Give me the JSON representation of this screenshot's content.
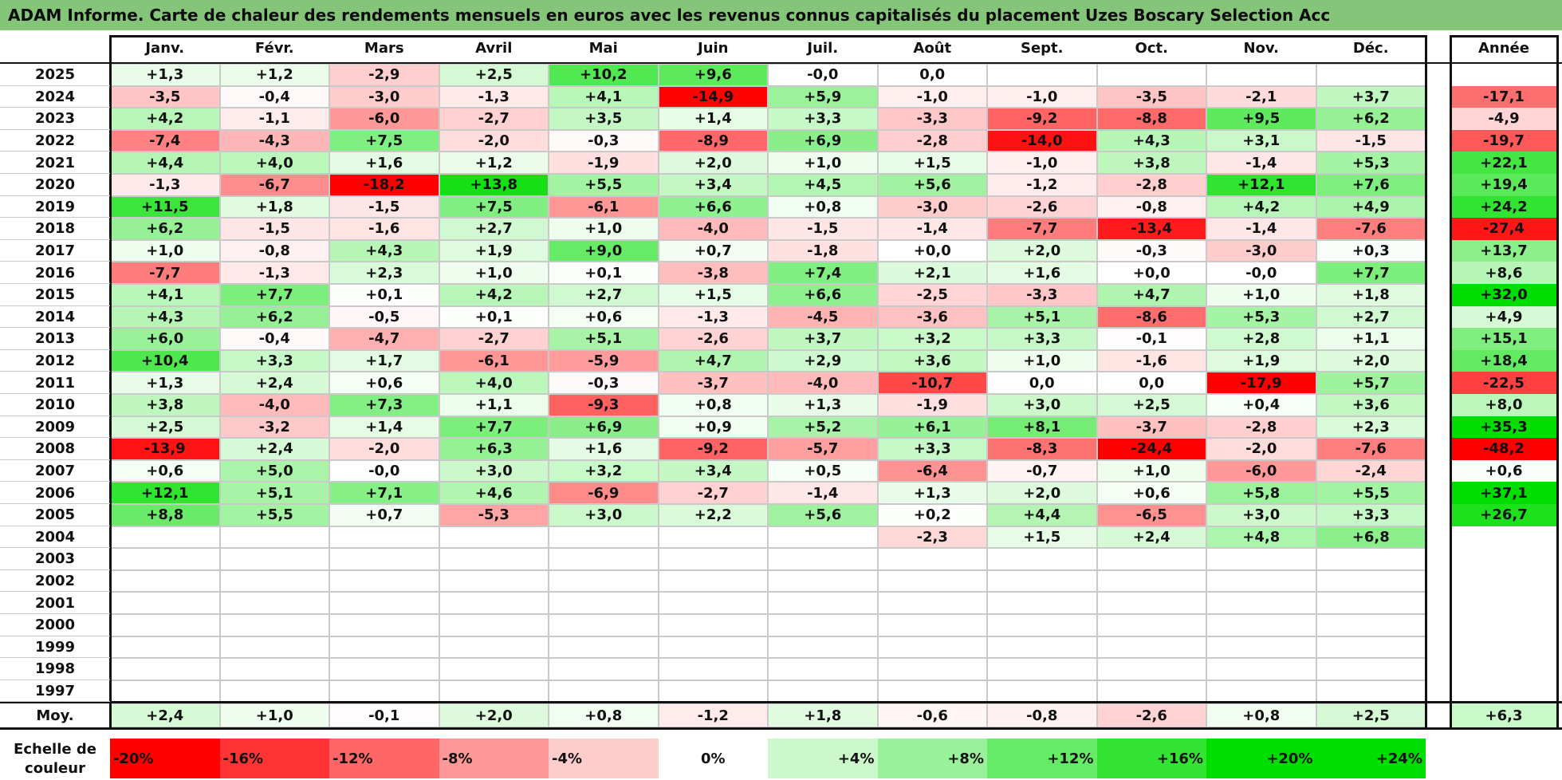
{
  "title": "ADAM Informe. Carte de chaleur des rendements mensuels en euros avec les revenus connus capitalisés du placement Uzes Boscary Selection Acc",
  "colors": {
    "title_bar": "#84c57a",
    "negative": "#ff0000",
    "positive": "#00dd00",
    "neutral": "#ffffff"
  },
  "chart_data": {
    "type": "heatmap",
    "months": [
      "Janv.",
      "Févr.",
      "Mars",
      "Avril",
      "Mai",
      "Juin",
      "Juil.",
      "Août",
      "Sept.",
      "Oct.",
      "Nov.",
      "Déc."
    ],
    "year_header": "Année",
    "avg_label": "Moy.",
    "rows": [
      {
        "year": "2025",
        "m": [
          "+1,3",
          "+1,2",
          "-2,9",
          "+2,5",
          "+10,2",
          "+9,6",
          "-0,0",
          "0,0",
          "",
          "",
          "",
          ""
        ],
        "annual": ""
      },
      {
        "year": "2024",
        "m": [
          "-3,5",
          "-0,4",
          "-3,0",
          "-1,3",
          "+4,1",
          "-14,9",
          "+5,9",
          "-1,0",
          "-1,0",
          "-3,5",
          "-2,1",
          "+3,7"
        ],
        "annual": "-17,1"
      },
      {
        "year": "2023",
        "m": [
          "+4,2",
          "-1,1",
          "-6,0",
          "-2,7",
          "+3,5",
          "+1,4",
          "+3,3",
          "-3,3",
          "-9,2",
          "-8,8",
          "+9,5",
          "+6,2"
        ],
        "annual": "-4,9"
      },
      {
        "year": "2022",
        "m": [
          "-7,4",
          "-4,3",
          "+7,5",
          "-2,0",
          "-0,3",
          "-8,9",
          "+6,9",
          "-2,8",
          "-14,0",
          "+4,3",
          "+3,1",
          "-1,5"
        ],
        "annual": "-19,7"
      },
      {
        "year": "2021",
        "m": [
          "+4,4",
          "+4,0",
          "+1,6",
          "+1,2",
          "-1,9",
          "+2,0",
          "+1,0",
          "+1,5",
          "-1,0",
          "+3,8",
          "-1,4",
          "+5,3"
        ],
        "annual": "+22,1"
      },
      {
        "year": "2020",
        "m": [
          "-1,3",
          "-6,7",
          "-18,2",
          "+13,8",
          "+5,5",
          "+3,4",
          "+4,5",
          "+5,6",
          "-1,2",
          "-2,8",
          "+12,1",
          "+7,6"
        ],
        "annual": "+19,4"
      },
      {
        "year": "2019",
        "m": [
          "+11,5",
          "+1,8",
          "-1,5",
          "+7,5",
          "-6,1",
          "+6,6",
          "+0,8",
          "-3,0",
          "-2,6",
          "-0,8",
          "+4,2",
          "+4,9"
        ],
        "annual": "+24,2"
      },
      {
        "year": "2018",
        "m": [
          "+6,2",
          "-1,5",
          "-1,6",
          "+2,7",
          "+1,0",
          "-4,0",
          "-1,5",
          "-1,4",
          "-7,7",
          "-13,4",
          "-1,4",
          "-7,6"
        ],
        "annual": "-27,4"
      },
      {
        "year": "2017",
        "m": [
          "+1,0",
          "-0,8",
          "+4,3",
          "+1,9",
          "+9,0",
          "+0,7",
          "-1,8",
          "+0,0",
          "+2,0",
          "-0,3",
          "-3,0",
          "+0,3"
        ],
        "annual": "+13,7"
      },
      {
        "year": "2016",
        "m": [
          "-7,7",
          "-1,3",
          "+2,3",
          "+1,0",
          "+0,1",
          "-3,8",
          "+7,4",
          "+2,1",
          "+1,6",
          "+0,0",
          "-0,0",
          "+7,7"
        ],
        "annual": "+8,6"
      },
      {
        "year": "2015",
        "m": [
          "+4,1",
          "+7,7",
          "+0,1",
          "+4,2",
          "+2,7",
          "+1,5",
          "+6,6",
          "-2,5",
          "-3,3",
          "+4,7",
          "+1,0",
          "+1,8"
        ],
        "annual": "+32,0"
      },
      {
        "year": "2014",
        "m": [
          "+4,3",
          "+6,2",
          "-0,5",
          "+0,1",
          "+0,6",
          "-1,3",
          "-4,5",
          "-3,6",
          "+5,1",
          "-8,6",
          "+5,3",
          "+2,7"
        ],
        "annual": "+4,9"
      },
      {
        "year": "2013",
        "m": [
          "+6,0",
          "-0,4",
          "-4,7",
          "-2,7",
          "+5,1",
          "-2,6",
          "+3,7",
          "+3,2",
          "+3,3",
          "-0,1",
          "+2,8",
          "+1,1"
        ],
        "annual": "+15,1"
      },
      {
        "year": "2012",
        "m": [
          "+10,4",
          "+3,3",
          "+1,7",
          "-6,1",
          "-5,9",
          "+4,7",
          "+2,9",
          "+3,6",
          "+1,0",
          "-1,6",
          "+1,9",
          "+2,0"
        ],
        "annual": "+18,4"
      },
      {
        "year": "2011",
        "m": [
          "+1,3",
          "+2,4",
          "+0,6",
          "+4,0",
          "-0,3",
          "-3,7",
          "-4,0",
          "-10,7",
          "0,0",
          "0,0",
          "-17,9",
          "+5,7"
        ],
        "annual": "-22,5"
      },
      {
        "year": "2010",
        "m": [
          "+3,8",
          "-4,0",
          "+7,3",
          "+1,1",
          "-9,3",
          "+0,8",
          "+1,3",
          "-1,9",
          "+3,0",
          "+2,5",
          "+0,4",
          "+3,6"
        ],
        "annual": "+8,0"
      },
      {
        "year": "2009",
        "m": [
          "+2,5",
          "-3,2",
          "+1,4",
          "+7,7",
          "+6,9",
          "+0,9",
          "+5,2",
          "+6,1",
          "+8,1",
          "-3,7",
          "-2,8",
          "+2,3"
        ],
        "annual": "+35,3"
      },
      {
        "year": "2008",
        "m": [
          "-13,9",
          "+2,4",
          "-2,0",
          "+6,3",
          "+1,6",
          "-9,2",
          "-5,7",
          "+3,3",
          "-8,3",
          "-24,4",
          "-2,0",
          "-7,6"
        ],
        "annual": "-48,2"
      },
      {
        "year": "2007",
        "m": [
          "+0,6",
          "+5,0",
          "-0,0",
          "+3,0",
          "+3,2",
          "+3,4",
          "+0,5",
          "-6,4",
          "-0,7",
          "+1,0",
          "-6,0",
          "-2,4"
        ],
        "annual": "+0,6"
      },
      {
        "year": "2006",
        "m": [
          "+12,1",
          "+5,1",
          "+7,1",
          "+4,6",
          "-6,9",
          "-2,7",
          "-1,4",
          "+1,3",
          "+2,0",
          "+0,6",
          "+5,8",
          "+5,5"
        ],
        "annual": "+37,1"
      },
      {
        "year": "2005",
        "m": [
          "+8,8",
          "+5,5",
          "+0,7",
          "-5,3",
          "+3,0",
          "+2,2",
          "+5,6",
          "+0,2",
          "+4,4",
          "-6,5",
          "+3,0",
          "+3,3"
        ],
        "annual": "+26,7"
      },
      {
        "year": "2004",
        "m": [
          "",
          "",
          "",
          "",
          "",
          "",
          "",
          "-2,3",
          "+1,5",
          "+2,4",
          "+4,8",
          "+6,8"
        ],
        "annual": ""
      },
      {
        "year": "2003",
        "m": [
          "",
          "",
          "",
          "",
          "",
          "",
          "",
          "",
          "",
          "",
          "",
          ""
        ],
        "annual": ""
      },
      {
        "year": "2002",
        "m": [
          "",
          "",
          "",
          "",
          "",
          "",
          "",
          "",
          "",
          "",
          "",
          ""
        ],
        "annual": ""
      },
      {
        "year": "2001",
        "m": [
          "",
          "",
          "",
          "",
          "",
          "",
          "",
          "",
          "",
          "",
          "",
          ""
        ],
        "annual": ""
      },
      {
        "year": "2000",
        "m": [
          "",
          "",
          "",
          "",
          "",
          "",
          "",
          "",
          "",
          "",
          "",
          ""
        ],
        "annual": ""
      },
      {
        "year": "1999",
        "m": [
          "",
          "",
          "",
          "",
          "",
          "",
          "",
          "",
          "",
          "",
          "",
          ""
        ],
        "annual": ""
      },
      {
        "year": "1998",
        "m": [
          "",
          "",
          "",
          "",
          "",
          "",
          "",
          "",
          "",
          "",
          "",
          ""
        ],
        "annual": ""
      },
      {
        "year": "1997",
        "m": [
          "",
          "",
          "",
          "",
          "",
          "",
          "",
          "",
          "",
          "",
          "",
          ""
        ],
        "annual": ""
      }
    ],
    "averages": [
      "+2,4",
      "+1,0",
      "-0,1",
      "+2,0",
      "+0,8",
      "-1,2",
      "+1,8",
      "-0,6",
      "-0,8",
      "-2,6",
      "+0,8",
      "+2,5"
    ],
    "annual_average": "+6,3",
    "scale_title": "Echelle de couleur",
    "scale": [
      {
        "label": "-20%",
        "value": -20
      },
      {
        "label": "-16%",
        "value": -16
      },
      {
        "label": "-12%",
        "value": -12
      },
      {
        "label": "-8%",
        "value": -8
      },
      {
        "label": "-4%",
        "value": -4
      },
      {
        "label": "0%",
        "value": 0
      },
      {
        "label": "+4%",
        "value": 4
      },
      {
        "label": "+8%",
        "value": 8
      },
      {
        "label": "+12%",
        "value": 12
      },
      {
        "label": "+16%",
        "value": 16
      },
      {
        "label": "+20%",
        "value": 20
      },
      {
        "label": "+24%",
        "value": 24
      }
    ]
  }
}
